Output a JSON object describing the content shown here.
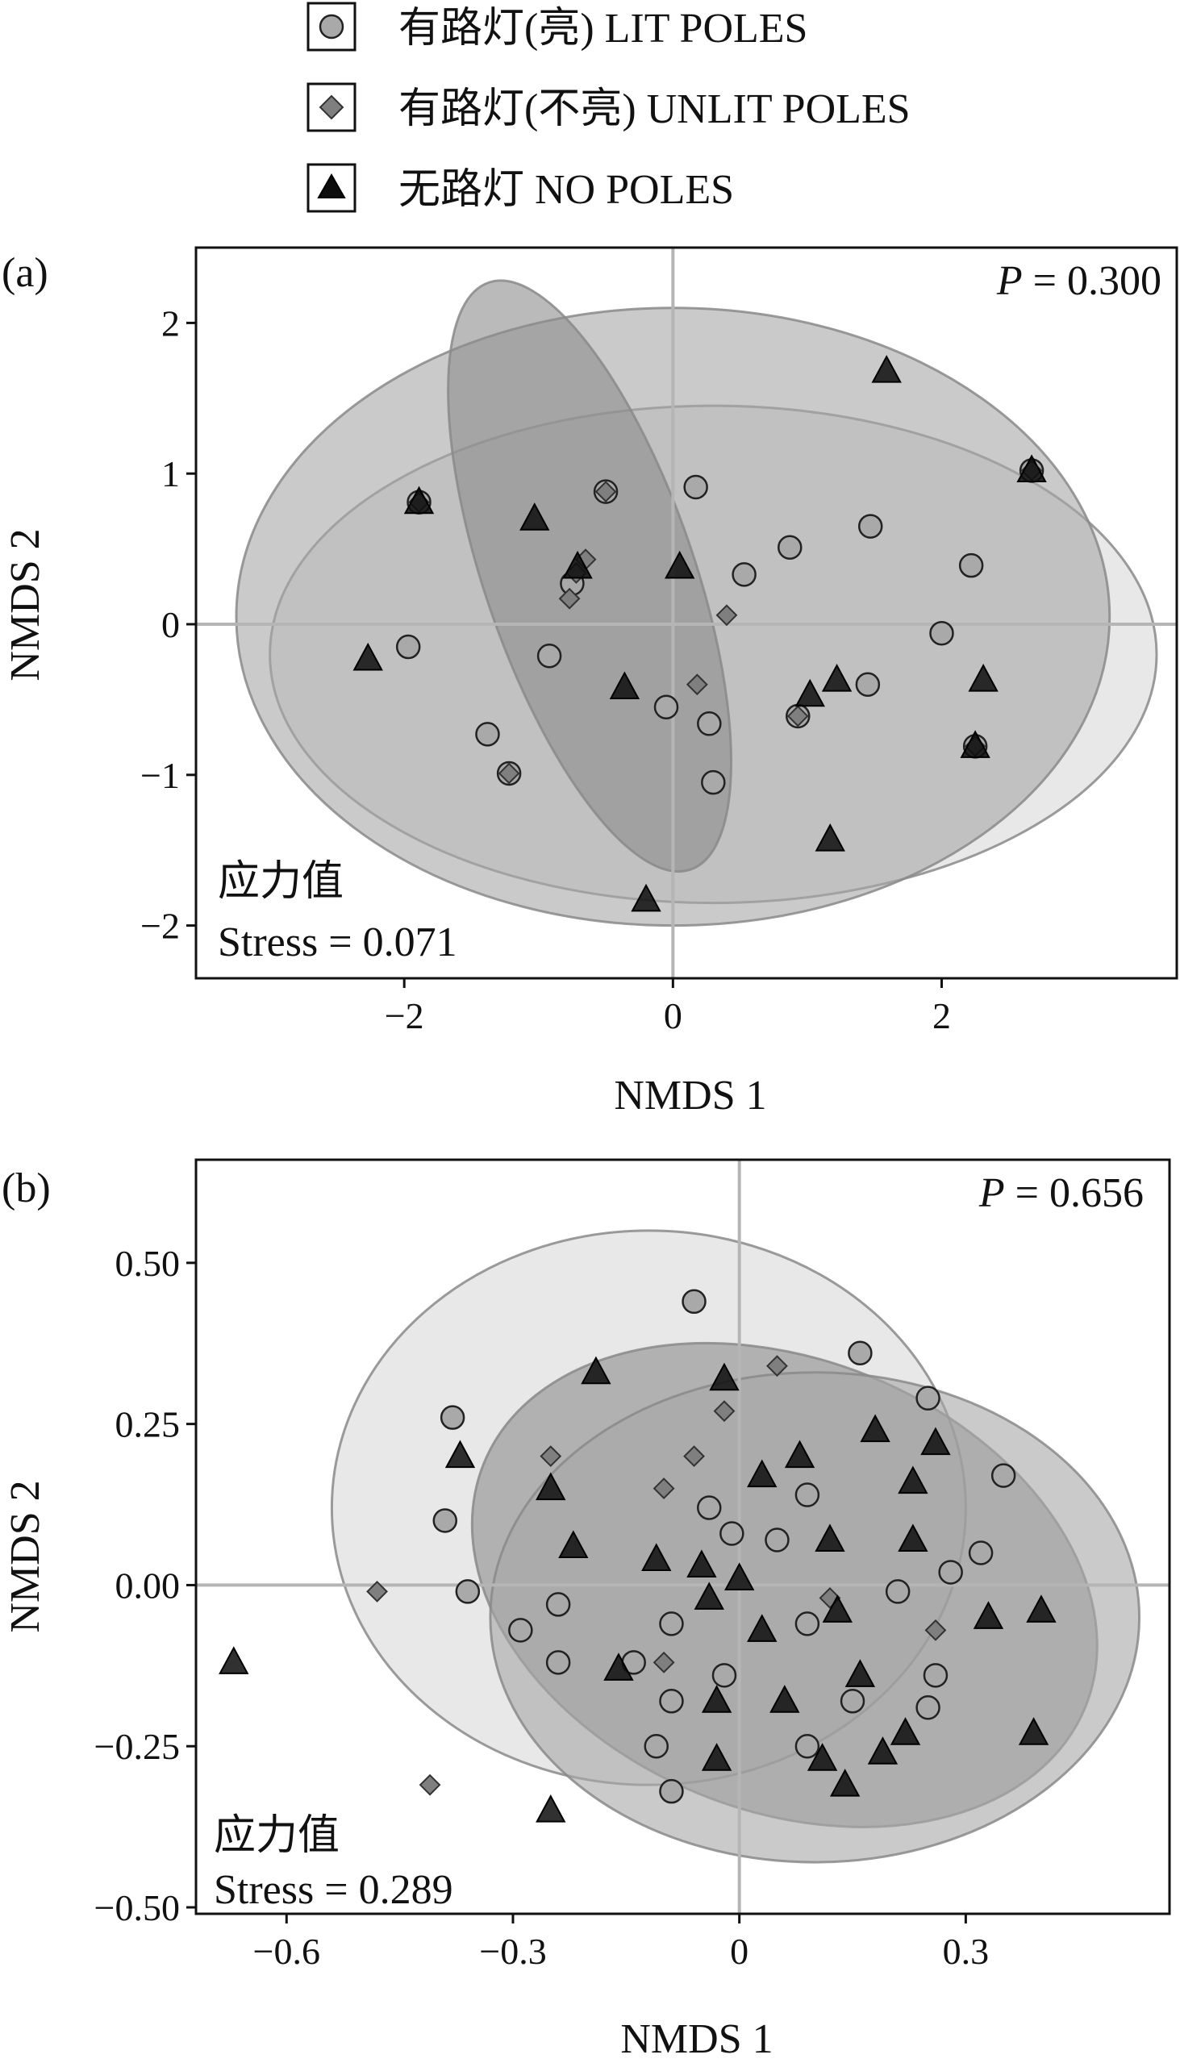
{
  "legend": {
    "lit": "有路灯(亮) LIT POLES",
    "unlit": "有路灯(不亮) UNLIT POLES",
    "none": "无路灯 NO POLES"
  },
  "colors": {
    "lit_fill": "#a9a9a9",
    "unlit_fill": "#7f7f7f",
    "none_fill": "#0d0d0d",
    "ellipse_lit": "#d9d9d9",
    "ellipse_unlit": "#8c8c8c",
    "ellipse_none": "#a6a6a6"
  },
  "chart_data": [
    {
      "type": "scatter",
      "panel_label": "(a)",
      "xlabel": "NMDS 1",
      "ylabel": "NMDS 2",
      "xlim": [
        -3.55,
        3.75
      ],
      "ylim": [
        -2.35,
        2.5
      ],
      "xticks": [
        -2,
        0,
        2
      ],
      "xtick_labels": [
        "−2",
        "0",
        "2"
      ],
      "yticks": [
        -2,
        -1,
        0,
        1,
        2
      ],
      "ytick_labels": [
        "−2",
        "−1",
        "0",
        "1",
        "2"
      ],
      "p_label": "P",
      "p_value": " = 0.300",
      "stress_cn": "应力值",
      "stress_label": "Stress = 0.071",
      "ellipses": [
        {
          "group": "lit",
          "cx": 0.3,
          "cy": -0.2,
          "rx": 3.3,
          "ry": 1.65,
          "angle": 0
        },
        {
          "group": "none",
          "cx": 0.0,
          "cy": 0.05,
          "rx": 3.25,
          "ry": 2.05,
          "angle": 0
        },
        {
          "group": "unlit",
          "cx": -0.62,
          "cy": 0.32,
          "rx": 0.78,
          "ry": 2.06,
          "angle": 19
        }
      ],
      "series": [
        {
          "name": "有路灯(亮) LIT POLES",
          "group": "lit",
          "marker": "circle",
          "points": [
            [
              -1.97,
              -0.15
            ],
            [
              -1.89,
              0.81
            ],
            [
              -1.38,
              -0.73
            ],
            [
              -1.22,
              -0.99
            ],
            [
              -0.92,
              -0.21
            ],
            [
              -0.75,
              0.27
            ],
            [
              -0.5,
              0.88
            ],
            [
              -0.05,
              -0.55
            ],
            [
              0.17,
              0.91
            ],
            [
              0.27,
              -0.66
            ],
            [
              0.3,
              -1.05
            ],
            [
              0.53,
              0.33
            ],
            [
              0.87,
              0.51
            ],
            [
              0.93,
              -0.61
            ],
            [
              1.45,
              -0.4
            ],
            [
              1.47,
              0.65
            ],
            [
              2.0,
              -0.06
            ],
            [
              2.22,
              0.39
            ],
            [
              2.25,
              -0.81
            ],
            [
              2.67,
              1.02
            ]
          ]
        },
        {
          "name": "有路灯(不亮) UNLIT POLES",
          "group": "unlit",
          "marker": "diamond",
          "points": [
            [
              -1.89,
              0.81
            ],
            [
              -1.22,
              -0.99
            ],
            [
              -0.77,
              0.17
            ],
            [
              -0.72,
              0.34
            ],
            [
              -0.65,
              0.43
            ],
            [
              -0.5,
              0.88
            ],
            [
              0.18,
              -0.4
            ],
            [
              0.4,
              0.06
            ],
            [
              0.93,
              -0.61
            ],
            [
              2.25,
              -0.81
            ],
            [
              2.67,
              1.02
            ]
          ]
        },
        {
          "name": "无路灯 NO POLES",
          "group": "none",
          "marker": "triangle",
          "points": [
            [
              -2.27,
              -0.23
            ],
            [
              -1.89,
              0.81
            ],
            [
              -1.03,
              0.7
            ],
            [
              -0.71,
              0.38
            ],
            [
              -0.36,
              -0.42
            ],
            [
              0.05,
              0.38
            ],
            [
              -0.2,
              -1.83
            ],
            [
              1.02,
              -0.47
            ],
            [
              1.17,
              -1.43
            ],
            [
              1.22,
              -0.37
            ],
            [
              1.59,
              1.68
            ],
            [
              2.25,
              -0.81
            ],
            [
              2.31,
              -0.37
            ],
            [
              2.67,
              1.02
            ]
          ]
        }
      ]
    },
    {
      "type": "scatter",
      "panel_label": "(b)",
      "xlabel": "NMDS 1",
      "ylabel": "NMDS 2",
      "xlim": [
        -0.72,
        0.57
      ],
      "ylim": [
        -0.51,
        0.66
      ],
      "xticks": [
        -0.6,
        -0.3,
        0,
        0.3
      ],
      "xtick_labels": [
        "−0.6",
        "−0.3",
        "0",
        "0.3"
      ],
      "yticks": [
        -0.5,
        -0.25,
        0,
        0.25,
        0.5
      ],
      "ytick_labels": [
        "−0.50",
        "−0.25",
        "0.00",
        "0.25",
        "0.50"
      ],
      "p_label": "P",
      "p_value": " = 0.656",
      "stress_cn": "应力值",
      "stress_label": "Stress = 0.289",
      "ellipses": [
        {
          "group": "lit",
          "cx": -0.12,
          "cy": 0.12,
          "rx": 0.42,
          "ry": 0.43,
          "angle": 0
        },
        {
          "group": "unlit",
          "cx": 0.06,
          "cy": 0.0,
          "rx": 0.43,
          "ry": 0.35,
          "angle": -22
        },
        {
          "group": "none",
          "cx": 0.1,
          "cy": -0.05,
          "rx": 0.43,
          "ry": 0.38,
          "angle": 0
        }
      ],
      "series": [
        {
          "name": "有路灯(亮) LIT POLES",
          "group": "lit",
          "marker": "circle",
          "points": [
            [
              -0.38,
              0.26
            ],
            [
              -0.39,
              0.1
            ],
            [
              -0.36,
              -0.01
            ],
            [
              -0.29,
              -0.07
            ],
            [
              -0.24,
              -0.12
            ],
            [
              -0.24,
              -0.03
            ],
            [
              -0.14,
              -0.12
            ],
            [
              -0.11,
              -0.25
            ],
            [
              -0.09,
              -0.18
            ],
            [
              -0.09,
              -0.32
            ],
            [
              -0.09,
              -0.06
            ],
            [
              -0.06,
              0.44
            ],
            [
              -0.04,
              0.12
            ],
            [
              -0.02,
              -0.14
            ],
            [
              -0.01,
              0.08
            ],
            [
              0.05,
              0.07
            ],
            [
              0.09,
              0.14
            ],
            [
              0.09,
              -0.06
            ],
            [
              0.09,
              -0.25
            ],
            [
              0.16,
              0.36
            ],
            [
              0.15,
              -0.18
            ],
            [
              0.21,
              -0.01
            ],
            [
              0.25,
              0.29
            ],
            [
              0.26,
              -0.14
            ],
            [
              0.25,
              -0.19
            ],
            [
              0.28,
              0.02
            ],
            [
              0.32,
              0.05
            ],
            [
              0.35,
              0.17
            ]
          ]
        },
        {
          "name": "有路灯(不亮) UNLIT POLES",
          "group": "unlit",
          "marker": "diamond",
          "points": [
            [
              -0.48,
              -0.01
            ],
            [
              -0.41,
              -0.31
            ],
            [
              -0.25,
              0.2
            ],
            [
              -0.1,
              0.15
            ],
            [
              -0.1,
              -0.12
            ],
            [
              -0.06,
              0.2
            ],
            [
              -0.02,
              0.27
            ],
            [
              0.05,
              0.34
            ],
            [
              0.12,
              -0.02
            ],
            [
              0.26,
              -0.07
            ]
          ]
        },
        {
          "name": "无路灯 NO POLES",
          "group": "none",
          "marker": "triangle",
          "points": [
            [
              -0.67,
              -0.12
            ],
            [
              -0.37,
              0.2
            ],
            [
              -0.25,
              0.15
            ],
            [
              -0.25,
              -0.35
            ],
            [
              -0.22,
              0.06
            ],
            [
              -0.19,
              0.33
            ],
            [
              -0.16,
              -0.13
            ],
            [
              -0.11,
              0.04
            ],
            [
              -0.05,
              0.03
            ],
            [
              -0.04,
              -0.02
            ],
            [
              -0.03,
              -0.18
            ],
            [
              -0.03,
              -0.27
            ],
            [
              -0.02,
              0.32
            ],
            [
              0.0,
              0.01
            ],
            [
              0.03,
              0.17
            ],
            [
              0.03,
              -0.07
            ],
            [
              0.06,
              -0.18
            ],
            [
              0.08,
              0.2
            ],
            [
              0.11,
              -0.27
            ],
            [
              0.12,
              0.07
            ],
            [
              0.13,
              -0.04
            ],
            [
              0.14,
              -0.31
            ],
            [
              0.16,
              -0.14
            ],
            [
              0.18,
              0.24
            ],
            [
              0.19,
              -0.26
            ],
            [
              0.23,
              0.07
            ],
            [
              0.23,
              0.16
            ],
            [
              0.22,
              -0.23
            ],
            [
              0.26,
              0.22
            ],
            [
              0.33,
              -0.05
            ],
            [
              0.39,
              -0.23
            ],
            [
              0.4,
              -0.04
            ]
          ]
        }
      ]
    }
  ]
}
